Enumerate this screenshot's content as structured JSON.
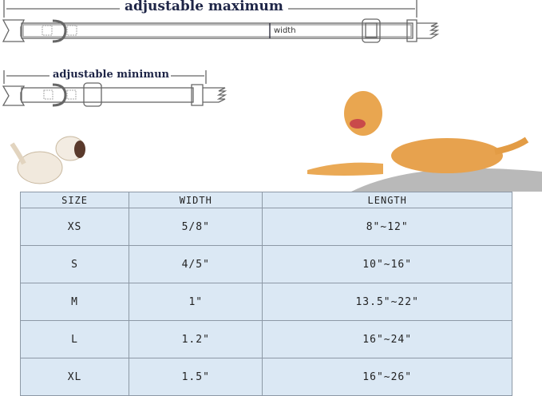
{
  "diagram": {
    "max_label": "adjustable maximum",
    "min_label": "adjustable minimun",
    "width_label": "width"
  },
  "table": {
    "headers": [
      "SIZE",
      "WIDTH",
      "LENGTH"
    ],
    "rows": [
      [
        "XS",
        "5/8\"",
        "8\"~12\""
      ],
      [
        "S",
        "4/5\"",
        "10\"~16\""
      ],
      [
        "M",
        "1\"",
        "13.5\"~22\""
      ],
      [
        "L",
        "1.2\"",
        "16\"~24\""
      ],
      [
        "XL",
        "1.5\"",
        "16\"~26\""
      ]
    ]
  }
}
